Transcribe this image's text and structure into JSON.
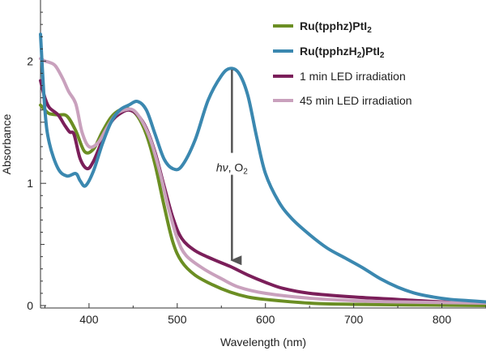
{
  "chart_data": {
    "type": "line",
    "title": "",
    "xlabel": "Wavelength (nm)",
    "ylabel": "Absorbance",
    "xlim": [
      345,
      850
    ],
    "ylim": [
      -0.02,
      2.5
    ],
    "x_ticks": [
      400,
      500,
      600,
      700,
      800
    ],
    "y_ticks": [
      0,
      1,
      2
    ],
    "grid": false,
    "legend_position": "top-right",
    "series": [
      {
        "key": "ru-tpphz-pti2",
        "name": "Ru(tpphz)PtI2",
        "label_parts": [
          {
            "text": "Ru(tpphz)PtI",
            "style": "normal"
          },
          {
            "text": "2",
            "style": "sub"
          }
        ],
        "bold": true,
        "color": "#6b8e23",
        "points": [
          [
            345,
            1.64
          ],
          [
            350,
            1.6
          ],
          [
            355,
            1.57
          ],
          [
            365,
            1.56
          ],
          [
            375,
            1.55
          ],
          [
            385,
            1.43
          ],
          [
            395,
            1.26
          ],
          [
            405,
            1.28
          ],
          [
            415,
            1.42
          ],
          [
            425,
            1.54
          ],
          [
            435,
            1.6
          ],
          [
            445,
            1.61
          ],
          [
            455,
            1.55
          ],
          [
            465,
            1.4
          ],
          [
            475,
            1.15
          ],
          [
            485,
            0.82
          ],
          [
            495,
            0.52
          ],
          [
            505,
            0.36
          ],
          [
            520,
            0.25
          ],
          [
            540,
            0.17
          ],
          [
            560,
            0.11
          ],
          [
            580,
            0.07
          ],
          [
            600,
            0.05
          ],
          [
            650,
            0.02
          ],
          [
            700,
            0.01
          ],
          [
            850,
            0.0
          ]
        ]
      },
      {
        "key": "ru-tpphzh2-pti2",
        "name": "Ru(tpphzH2)PtI2",
        "label_parts": [
          {
            "text": "Ru(tpphzH",
            "style": "normal"
          },
          {
            "text": "2",
            "style": "sub"
          },
          {
            "text": ")PtI",
            "style": "normal"
          },
          {
            "text": "2",
            "style": "sub"
          }
        ],
        "bold": true,
        "color": "#3b88b0",
        "points": [
          [
            345,
            2.22
          ],
          [
            350,
            1.6
          ],
          [
            355,
            1.33
          ],
          [
            365,
            1.12
          ],
          [
            375,
            1.06
          ],
          [
            385,
            1.08
          ],
          [
            390,
            1.02
          ],
          [
            396,
            0.98
          ],
          [
            405,
            1.1
          ],
          [
            415,
            1.32
          ],
          [
            425,
            1.5
          ],
          [
            435,
            1.6
          ],
          [
            445,
            1.64
          ],
          [
            455,
            1.67
          ],
          [
            465,
            1.6
          ],
          [
            475,
            1.4
          ],
          [
            485,
            1.2
          ],
          [
            495,
            1.12
          ],
          [
            505,
            1.14
          ],
          [
            520,
            1.35
          ],
          [
            535,
            1.68
          ],
          [
            550,
            1.88
          ],
          [
            560,
            1.94
          ],
          [
            570,
            1.9
          ],
          [
            580,
            1.72
          ],
          [
            590,
            1.38
          ],
          [
            600,
            1.08
          ],
          [
            615,
            0.85
          ],
          [
            630,
            0.71
          ],
          [
            650,
            0.58
          ],
          [
            670,
            0.47
          ],
          [
            690,
            0.39
          ],
          [
            710,
            0.31
          ],
          [
            730,
            0.22
          ],
          [
            750,
            0.15
          ],
          [
            770,
            0.1
          ],
          [
            790,
            0.07
          ],
          [
            810,
            0.05
          ],
          [
            830,
            0.04
          ],
          [
            850,
            0.03
          ]
        ]
      },
      {
        "key": "1-min-led",
        "name": "1 min LED irradiation",
        "label_parts": [
          {
            "text": "1 min LED irradiation",
            "style": "normal"
          }
        ],
        "bold": false,
        "color": "#7b1f5a",
        "points": [
          [
            345,
            1.84
          ],
          [
            350,
            1.7
          ],
          [
            355,
            1.62
          ],
          [
            365,
            1.56
          ],
          [
            372,
            1.48
          ],
          [
            378,
            1.42
          ],
          [
            383,
            1.4
          ],
          [
            390,
            1.2
          ],
          [
            398,
            1.12
          ],
          [
            405,
            1.18
          ],
          [
            415,
            1.35
          ],
          [
            425,
            1.5
          ],
          [
            435,
            1.57
          ],
          [
            445,
            1.6
          ],
          [
            455,
            1.56
          ],
          [
            465,
            1.45
          ],
          [
            475,
            1.25
          ],
          [
            485,
            0.98
          ],
          [
            495,
            0.72
          ],
          [
            505,
            0.55
          ],
          [
            520,
            0.45
          ],
          [
            540,
            0.38
          ],
          [
            560,
            0.32
          ],
          [
            580,
            0.25
          ],
          [
            600,
            0.19
          ],
          [
            620,
            0.14
          ],
          [
            650,
            0.1
          ],
          [
            700,
            0.07
          ],
          [
            750,
            0.05
          ],
          [
            800,
            0.03
          ],
          [
            850,
            0.02
          ]
        ]
      },
      {
        "key": "45-min-led",
        "name": "45 min LED irradiation",
        "label_parts": [
          {
            "text": "45 min LED irradiation",
            "style": "normal"
          }
        ],
        "bold": false,
        "color": "#c9a1bd",
        "points": [
          [
            345,
            2.02
          ],
          [
            350,
            2.0
          ],
          [
            355,
            1.99
          ],
          [
            362,
            1.96
          ],
          [
            370,
            1.86
          ],
          [
            377,
            1.75
          ],
          [
            385,
            1.65
          ],
          [
            392,
            1.42
          ],
          [
            400,
            1.3
          ],
          [
            410,
            1.33
          ],
          [
            420,
            1.45
          ],
          [
            430,
            1.56
          ],
          [
            440,
            1.6
          ],
          [
            450,
            1.6
          ],
          [
            460,
            1.51
          ],
          [
            470,
            1.35
          ],
          [
            480,
            1.1
          ],
          [
            490,
            0.8
          ],
          [
            500,
            0.55
          ],
          [
            510,
            0.41
          ],
          [
            530,
            0.3
          ],
          [
            550,
            0.22
          ],
          [
            570,
            0.15
          ],
          [
            600,
            0.1
          ],
          [
            650,
            0.06
          ],
          [
            700,
            0.04
          ],
          [
            750,
            0.03
          ],
          [
            850,
            0.02
          ]
        ]
      }
    ],
    "annotation": {
      "label_parts": [
        {
          "text": "hν",
          "style": "italic"
        },
        {
          "text": ", O",
          "style": "normal"
        },
        {
          "text": "2",
          "style": "sub"
        }
      ],
      "arrow_from": [
        562,
        1.93
      ],
      "arrow_to": [
        562,
        0.37
      ],
      "label_at": [
        562,
        1.13
      ],
      "color": "#555555"
    }
  }
}
